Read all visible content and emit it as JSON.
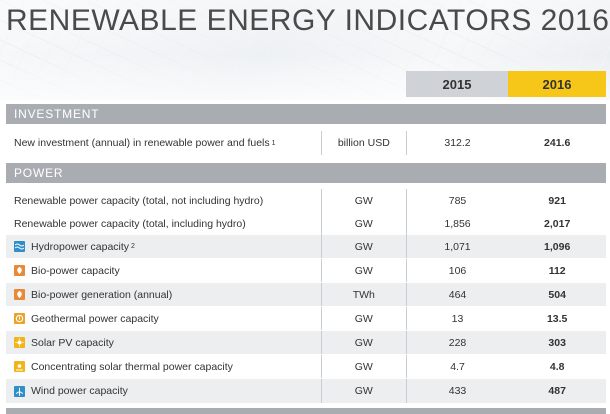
{
  "title": "RENEWABLE ENERGY INDICATORS 2016",
  "years": {
    "y2015": "2015",
    "y2016": "2016"
  },
  "colors": {
    "accent_2016": "#f6c718",
    "header_2015": "#cfd2d6",
    "section_bar": "#a9adb2"
  },
  "investment": {
    "heading": "INVESTMENT",
    "rows": [
      {
        "label": "New investment (annual) in renewable power and fuels",
        "sup": "1",
        "unit": "billion USD",
        "v2015": "312.2",
        "v2016": "241.6"
      }
    ]
  },
  "power": {
    "heading": "POWER",
    "rows": [
      {
        "label": "Renewable power capacity (total, not including hydro)",
        "icon": "",
        "unit": "GW",
        "v2015": "785",
        "v2016": "921"
      },
      {
        "label": "Renewable power capacity (total, including hydro)",
        "icon": "",
        "unit": "GW",
        "v2015": "1,856",
        "v2016": "2,017"
      },
      {
        "label": "Hydropower capacity",
        "sup": "2",
        "icon": "hydropower-icon",
        "unit": "GW",
        "v2015": "1,071",
        "v2016": "1,096"
      },
      {
        "label": "Bio-power capacity",
        "icon": "bio-power-icon",
        "unit": "GW",
        "v2015": "106",
        "v2016": "112"
      },
      {
        "label": "Bio-power generation (annual)",
        "icon": "bio-power-icon",
        "unit": "TWh",
        "v2015": "464",
        "v2016": "504"
      },
      {
        "label": "Geothermal power capacity",
        "icon": "geothermal-icon",
        "unit": "GW",
        "v2015": "13",
        "v2016": "13.5"
      },
      {
        "label": "Solar PV capacity",
        "icon": "solar-pv-icon",
        "unit": "GW",
        "v2015": "228",
        "v2016": "303"
      },
      {
        "label": "Concentrating solar thermal power capacity",
        "icon": "concentrating-solar-icon",
        "unit": "GW",
        "v2015": "4.7",
        "v2016": "4.8"
      },
      {
        "label": "Wind power capacity",
        "icon": "wind-power-icon",
        "unit": "GW",
        "v2015": "433",
        "v2016": "487"
      }
    ]
  }
}
